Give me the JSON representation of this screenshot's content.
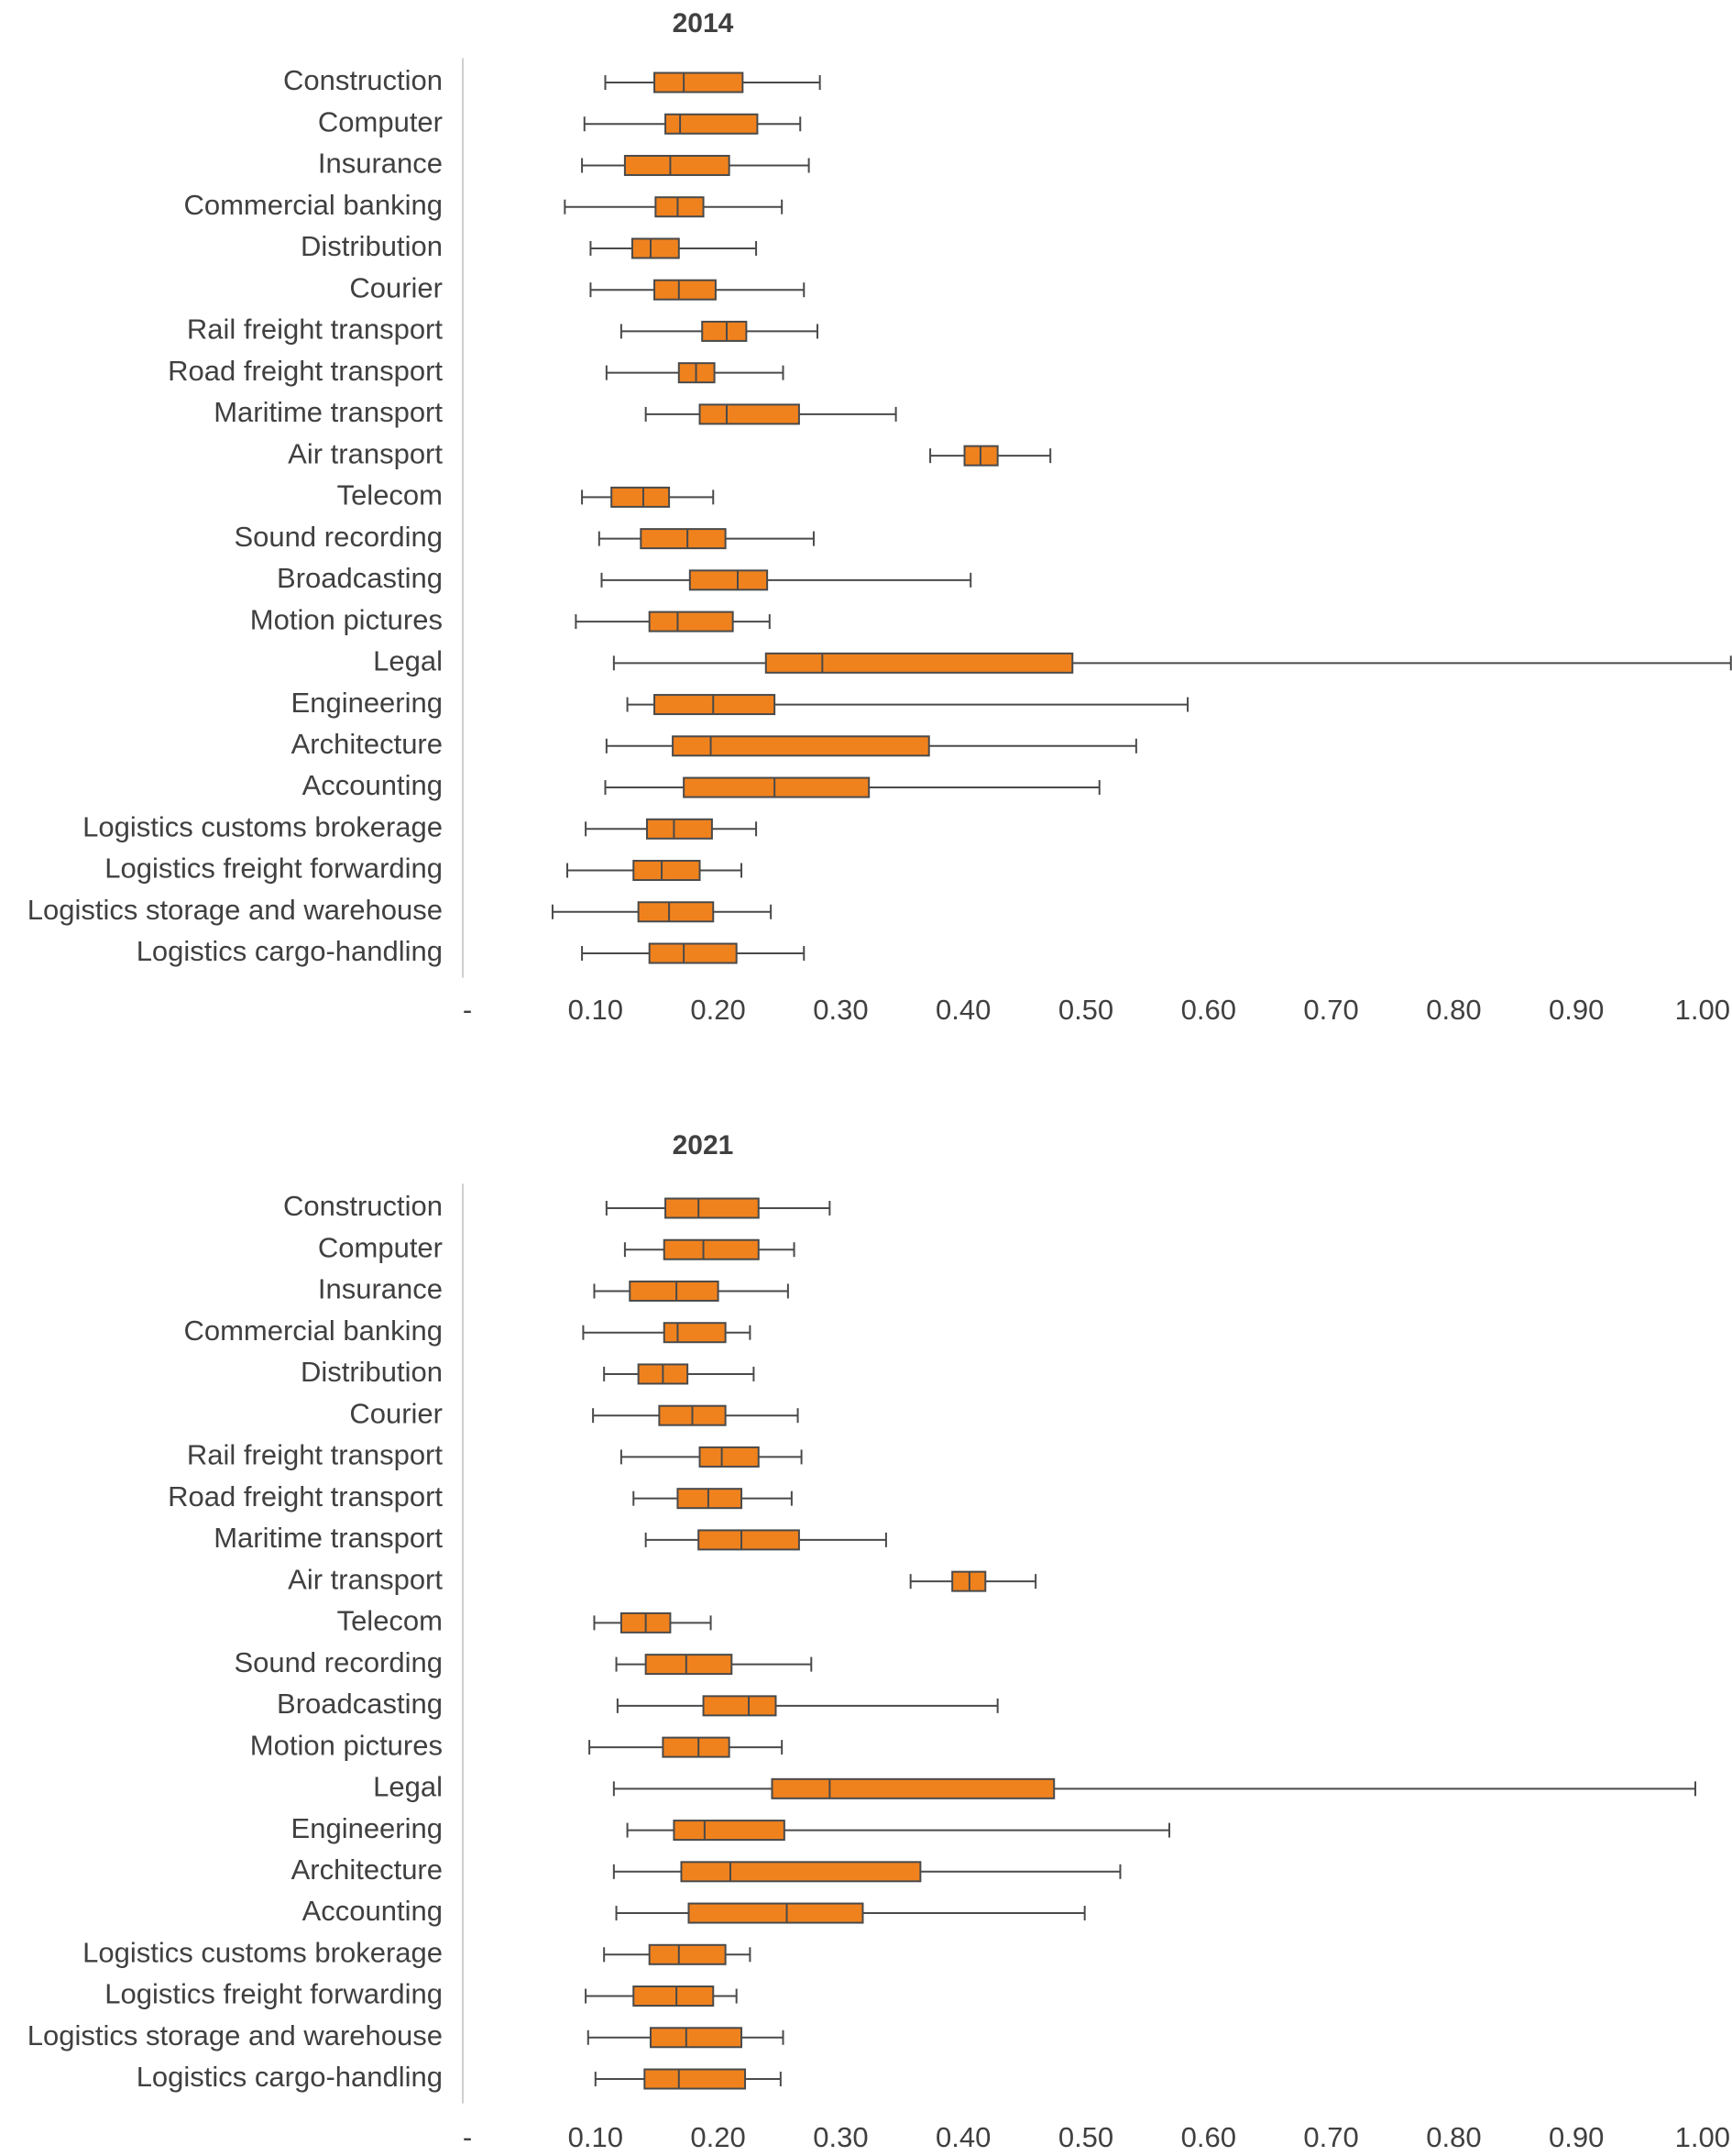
{
  "chart_data": [
    {
      "type": "boxplot",
      "title": "2014",
      "orientation": "horizontal",
      "xlim": [
        0,
        1.0
      ],
      "x_tick_labels": [
        "-",
        "0.10",
        "0.20",
        "0.30",
        "0.40",
        "0.50",
        "0.60",
        "0.70",
        "0.80",
        "0.90",
        "1.00"
      ],
      "grid": false,
      "box_color": "#F0821E",
      "categories": [
        "Construction",
        "Computer",
        "Insurance",
        "Commercial banking",
        "Distribution",
        "Courier",
        "Rail freight transport",
        "Road freight transport",
        "Maritime transport",
        "Air transport",
        "Telecom",
        "Sound recording",
        "Broadcasting",
        "Motion pictures",
        "Legal",
        "Engineering",
        "Architecture",
        "Accounting",
        "Logistics customs brokerage",
        "Logistics freight forwarding",
        "Logistics storage and warehouse",
        "Logistics cargo-handling"
      ],
      "stats_order": [
        "min",
        "q1",
        "median",
        "q3",
        "max"
      ],
      "values": [
        [
          0.108,
          0.148,
          0.172,
          0.22,
          0.283
        ],
        [
          0.091,
          0.157,
          0.169,
          0.232,
          0.267
        ],
        [
          0.089,
          0.124,
          0.161,
          0.209,
          0.274
        ],
        [
          0.075,
          0.149,
          0.167,
          0.188,
          0.252
        ],
        [
          0.096,
          0.13,
          0.145,
          0.168,
          0.231
        ],
        [
          0.096,
          0.148,
          0.168,
          0.198,
          0.27
        ],
        [
          0.121,
          0.187,
          0.207,
          0.223,
          0.281
        ],
        [
          0.109,
          0.168,
          0.182,
          0.197,
          0.253
        ],
        [
          0.141,
          0.185,
          0.207,
          0.266,
          0.345
        ],
        [
          0.373,
          0.401,
          0.414,
          0.428,
          0.471
        ],
        [
          0.089,
          0.113,
          0.139,
          0.16,
          0.196
        ],
        [
          0.103,
          0.137,
          0.175,
          0.206,
          0.278
        ],
        [
          0.105,
          0.177,
          0.216,
          0.24,
          0.406
        ],
        [
          0.084,
          0.144,
          0.167,
          0.212,
          0.242
        ],
        [
          0.115,
          0.239,
          0.285,
          0.489,
          1.026
        ],
        [
          0.126,
          0.148,
          0.196,
          0.246,
          0.583
        ],
        [
          0.109,
          0.163,
          0.194,
          0.372,
          0.541
        ],
        [
          0.108,
          0.172,
          0.246,
          0.323,
          0.511
        ],
        [
          0.092,
          0.142,
          0.164,
          0.195,
          0.231
        ],
        [
          0.077,
          0.131,
          0.154,
          0.185,
          0.219
        ],
        [
          0.065,
          0.135,
          0.16,
          0.196,
          0.243
        ],
        [
          0.089,
          0.144,
          0.172,
          0.215,
          0.27
        ]
      ]
    },
    {
      "type": "boxplot",
      "title": "2021",
      "orientation": "horizontal",
      "xlim": [
        0,
        1.0
      ],
      "x_tick_labels": [
        "-",
        "0.10",
        "0.20",
        "0.30",
        "0.40",
        "0.50",
        "0.60",
        "0.70",
        "0.80",
        "0.90",
        "1.00"
      ],
      "grid": false,
      "box_color": "#F0821E",
      "categories": [
        "Construction",
        "Computer",
        "Insurance",
        "Commercial banking",
        "Distribution",
        "Courier",
        "Rail freight transport",
        "Road freight transport",
        "Maritime transport",
        "Air transport",
        "Telecom",
        "Sound recording",
        "Broadcasting",
        "Motion pictures",
        "Legal",
        "Engineering",
        "Architecture",
        "Accounting",
        "Logistics customs brokerage",
        "Logistics freight forwarding",
        "Logistics storage and warehouse",
        "Logistics cargo-handling"
      ],
      "stats_order": [
        "min",
        "q1",
        "median",
        "q3",
        "max"
      ],
      "values": [
        [
          0.109,
          0.157,
          0.184,
          0.233,
          0.291
        ],
        [
          0.124,
          0.156,
          0.188,
          0.233,
          0.262
        ],
        [
          0.099,
          0.128,
          0.166,
          0.2,
          0.257
        ],
        [
          0.09,
          0.156,
          0.167,
          0.206,
          0.226
        ],
        [
          0.107,
          0.135,
          0.155,
          0.175,
          0.229
        ],
        [
          0.098,
          0.152,
          0.179,
          0.206,
          0.265
        ],
        [
          0.121,
          0.185,
          0.203,
          0.233,
          0.268
        ],
        [
          0.131,
          0.167,
          0.192,
          0.219,
          0.26
        ],
        [
          0.141,
          0.184,
          0.219,
          0.266,
          0.337
        ],
        [
          0.357,
          0.391,
          0.405,
          0.418,
          0.459
        ],
        [
          0.099,
          0.121,
          0.141,
          0.161,
          0.194
        ],
        [
          0.117,
          0.141,
          0.174,
          0.211,
          0.276
        ],
        [
          0.118,
          0.188,
          0.225,
          0.247,
          0.428
        ],
        [
          0.095,
          0.155,
          0.184,
          0.209,
          0.252
        ],
        [
          0.115,
          0.244,
          0.291,
          0.474,
          0.997
        ],
        [
          0.126,
          0.164,
          0.189,
          0.254,
          0.568
        ],
        [
          0.115,
          0.17,
          0.21,
          0.365,
          0.528
        ],
        [
          0.117,
          0.176,
          0.256,
          0.318,
          0.499
        ],
        [
          0.107,
          0.144,
          0.168,
          0.206,
          0.226
        ],
        [
          0.092,
          0.131,
          0.166,
          0.196,
          0.215
        ],
        [
          0.094,
          0.145,
          0.174,
          0.219,
          0.253
        ],
        [
          0.1,
          0.14,
          0.168,
          0.222,
          0.251
        ]
      ]
    }
  ]
}
